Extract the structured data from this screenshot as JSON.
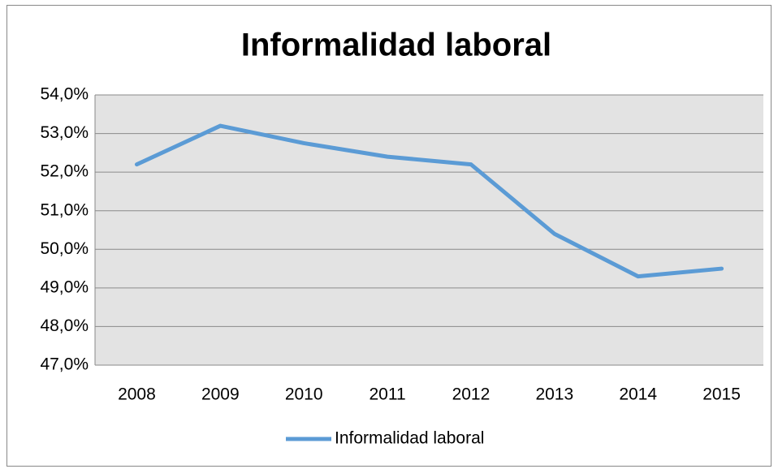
{
  "chart_data": {
    "type": "line",
    "title": "Informalidad laboral",
    "categories": [
      "2008",
      "2009",
      "2010",
      "2011",
      "2012",
      "2013",
      "2014",
      "2015"
    ],
    "series": [
      {
        "name": "Informalidad laboral",
        "color": "#5b9bd5",
        "values": [
          52.2,
          53.2,
          52.75,
          52.4,
          52.2,
          50.4,
          49.3,
          49.5
        ]
      }
    ],
    "ylim": [
      47,
      54
    ],
    "yticks": [
      {
        "value": 47,
        "label": "47,0%"
      },
      {
        "value": 48,
        "label": "48,0%"
      },
      {
        "value": 49,
        "label": "49,0%"
      },
      {
        "value": 50,
        "label": "50,0%"
      },
      {
        "value": 51,
        "label": "51,0%"
      },
      {
        "value": 52,
        "label": "52,0%"
      },
      {
        "value": 53,
        "label": "53,0%"
      },
      {
        "value": 54,
        "label": "54,0%"
      }
    ],
    "grid": true,
    "legend": "bottom"
  }
}
